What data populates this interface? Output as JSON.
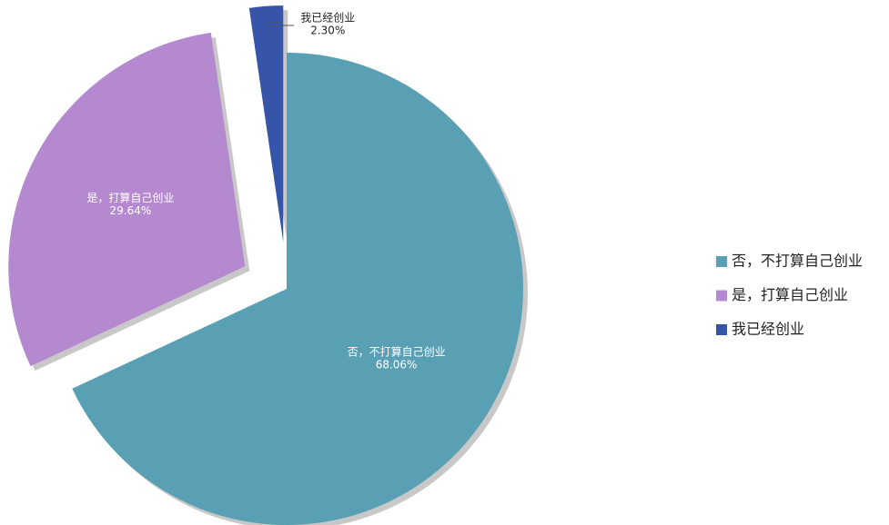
{
  "chart_data": {
    "type": "pie",
    "categories": [
      "否，不打算自己创业",
      "是，打算自己创业",
      "我已经创业"
    ],
    "values": [
      68.06,
      29.64,
      2.3
    ],
    "value_labels": [
      "68.06%",
      "29.64%",
      "2.30%"
    ],
    "colors": [
      "#59a0b4",
      "#b589d0",
      "#3655a8"
    ],
    "exploded": [
      false,
      true,
      true
    ],
    "legend": "right"
  }
}
